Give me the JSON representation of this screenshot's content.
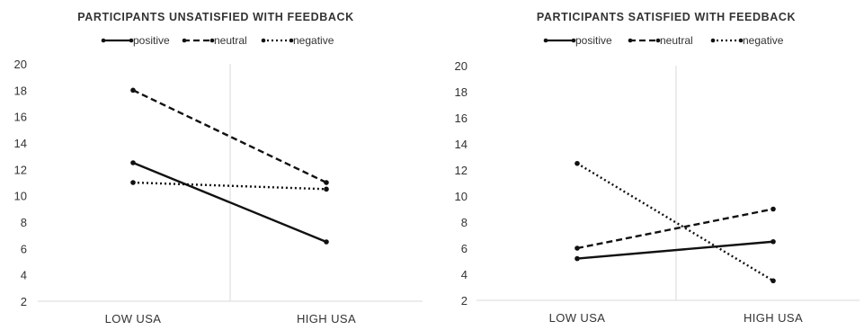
{
  "chart_data": [
    {
      "type": "line",
      "title": "PARTICIPANTS UNSATISFIED WITH FEEDBACK",
      "categories": [
        "LOW USA",
        "HIGH USA"
      ],
      "ylim": [
        2,
        20
      ],
      "yticks": [
        2,
        4,
        6,
        8,
        10,
        12,
        14,
        16,
        18,
        20
      ],
      "legend_position": "top",
      "grid": false,
      "series": [
        {
          "name": "positive",
          "style": "solid",
          "values": [
            12.5,
            6.5
          ]
        },
        {
          "name": "neutral",
          "style": "dashed",
          "values": [
            18,
            11
          ]
        },
        {
          "name": "negative",
          "style": "dotted",
          "values": [
            11,
            10.5
          ]
        }
      ]
    },
    {
      "type": "line",
      "title": "PARTICIPANTS SATISFIED WITH FEEDBACK",
      "categories": [
        "LOW USA",
        "HIGH USA"
      ],
      "ylim": [
        2,
        20
      ],
      "yticks": [
        2,
        4,
        6,
        8,
        10,
        12,
        14,
        16,
        18,
        20
      ],
      "legend_position": "top",
      "grid": false,
      "series": [
        {
          "name": "positive",
          "style": "solid",
          "values": [
            5.2,
            6.5
          ]
        },
        {
          "name": "neutral",
          "style": "dashed",
          "values": [
            6,
            9
          ]
        },
        {
          "name": "negative",
          "style": "dotted",
          "values": [
            12.5,
            3.5
          ]
        }
      ]
    }
  ]
}
